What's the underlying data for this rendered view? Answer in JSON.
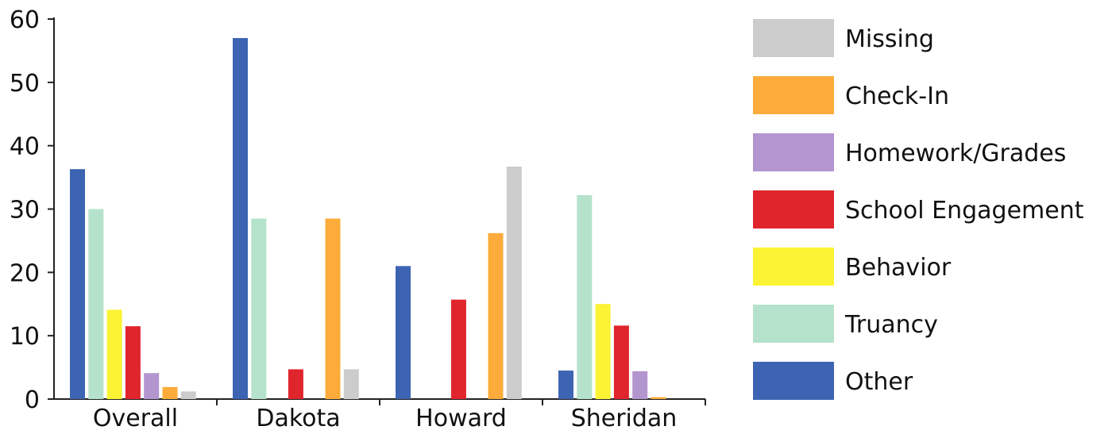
{
  "chart_data": {
    "type": "bar",
    "title": "",
    "xlabel": "",
    "ylabel": "",
    "ylim": [
      0,
      60
    ],
    "yticks": [
      0,
      10,
      20,
      30,
      40,
      50,
      60
    ],
    "categories": [
      "Overall",
      "Dakota",
      "Howard",
      "Sheridan"
    ],
    "series": [
      {
        "name": "Other",
        "color": "#3d64b3",
        "values": [
          36.3,
          57,
          21,
          4.5
        ]
      },
      {
        "name": "Truancy",
        "color": "#b5e2cb",
        "values": [
          30,
          28.5,
          0,
          32.2
        ]
      },
      {
        "name": "Behavior",
        "color": "#fbf333",
        "values": [
          14.1,
          0,
          0,
          15
        ]
      },
      {
        "name": "School Engagement",
        "color": "#e0252d",
        "values": [
          11.5,
          4.7,
          15.7,
          11.6
        ]
      },
      {
        "name": "Homework/Grades",
        "color": "#b395cf",
        "values": [
          4.1,
          0,
          0,
          4.4
        ]
      },
      {
        "name": "Check-In",
        "color": "#fdac3b",
        "values": [
          1.9,
          28.5,
          26.2,
          0.3
        ]
      },
      {
        "name": "Missing",
        "color": "#cccccc",
        "values": [
          1.2,
          4.7,
          36.7,
          0
        ]
      }
    ],
    "legend": {
      "position": "right",
      "order": [
        "Missing",
        "Check-In",
        "Homework/Grades",
        "School Engagement",
        "Behavior",
        "Truancy",
        "Other"
      ]
    },
    "grid": false
  }
}
